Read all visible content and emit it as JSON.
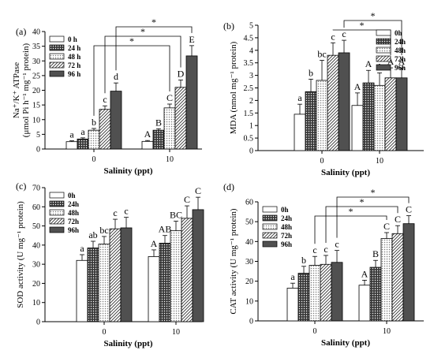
{
  "figure": {
    "panels": [
      {
        "label": "(a)",
        "ylabel_main": "Na⁺/K⁺ ATPase",
        "ylabel_unit": "(μmol Pi h⁻¹ mg⁻¹ protein)",
        "xlabel": "Salinity (ppt)"
      },
      {
        "label": "(b)",
        "ylabel_main": "MDA (nmol mg⁻¹ protein)",
        "ylabel_unit": "",
        "xlabel": "Salinity (ppt)"
      },
      {
        "label": "(c)",
        "ylabel_main": "SOD activity (U mg⁻¹ protein)",
        "ylabel_unit": "",
        "xlabel": "Salinity (ppt)"
      },
      {
        "label": "(d)",
        "ylabel_main": "CAT activity (U mg⁻¹ protein)",
        "ylabel_unit": "",
        "xlabel": "Salinity (ppt)"
      }
    ]
  },
  "chart_data": [
    {
      "type": "bar",
      "title": "",
      "xlabel": "Salinity (ppt)",
      "ylabel": "Na+/K+ ATPase (μmol Pi h-1 mg-1 protein)",
      "ylim": [
        0,
        40
      ],
      "yticks": [
        0,
        5,
        10,
        15,
        20,
        25,
        30,
        35,
        40
      ],
      "categories": [
        "0",
        "10"
      ],
      "legend_position": "upper-left",
      "series": [
        {
          "name": "0 h",
          "values": [
            2.5,
            2.6
          ],
          "errors": [
            0.3,
            0.3
          ],
          "letters": [
            "a",
            "A"
          ],
          "pattern": "white"
        },
        {
          "name": "24 h",
          "values": [
            3.4,
            6.4
          ],
          "errors": [
            0.4,
            0.5
          ],
          "letters": [
            "a",
            "B"
          ],
          "pattern": "dots-dark"
        },
        {
          "name": "48 h",
          "values": [
            6.4,
            14.0
          ],
          "errors": [
            0.6,
            1.3
          ],
          "letters": [
            "b",
            "C"
          ],
          "pattern": "dots-light"
        },
        {
          "name": "72 h",
          "values": [
            13.5,
            21.0
          ],
          "errors": [
            1.2,
            2.5
          ],
          "letters": [
            "c",
            "D"
          ],
          "pattern": "diagonal"
        },
        {
          "name": "96 h",
          "values": [
            19.7,
            31.7
          ],
          "errors": [
            2.8,
            3.5
          ],
          "letters": [
            "d",
            "E"
          ],
          "pattern": "dark"
        }
      ],
      "significance_brackets": [
        {
          "series_index": 2,
          "label": "*"
        },
        {
          "series_index": 3,
          "label": "*"
        },
        {
          "series_index": 4,
          "label": "*"
        }
      ]
    },
    {
      "type": "bar",
      "title": "",
      "xlabel": "Salinity (ppt)",
      "ylabel": "MDA (nmol mg-1 protein)",
      "ylim": [
        0,
        5
      ],
      "yticks": [
        0,
        0.5,
        1,
        1.5,
        2,
        2.5,
        3,
        3.5,
        4,
        4.5,
        5
      ],
      "categories": [
        "0",
        "10"
      ],
      "legend_position": "upper-right",
      "series": [
        {
          "name": "0h",
          "values": [
            1.45,
            1.8
          ],
          "errors": [
            0.4,
            0.5
          ],
          "letters": [
            "a",
            "A"
          ],
          "pattern": "white"
        },
        {
          "name": "24h",
          "values": [
            2.35,
            2.7
          ],
          "errors": [
            0.5,
            0.5
          ],
          "letters": [
            "b",
            "A"
          ],
          "pattern": "dots-dark"
        },
        {
          "name": "48h",
          "values": [
            2.8,
            2.6
          ],
          "errors": [
            0.8,
            0.5
          ],
          "letters": [
            "bc",
            "A"
          ],
          "pattern": "dots-light"
        },
        {
          "name": "72h",
          "values": [
            3.8,
            2.9
          ],
          "errors": [
            0.5,
            0.4
          ],
          "letters": [
            "c",
            "A"
          ],
          "pattern": "diagonal"
        },
        {
          "name": "96h",
          "values": [
            3.9,
            2.9
          ],
          "errors": [
            0.5,
            0.4
          ],
          "letters": [
            "c",
            "A"
          ],
          "pattern": "dark"
        }
      ],
      "significance_brackets": [
        {
          "series_index": 3,
          "label": "*"
        },
        {
          "series_index": 4,
          "label": "*"
        }
      ]
    },
    {
      "type": "bar",
      "title": "",
      "xlabel": "",
      "ylabel": "SOD activity (U mg-1 protein)",
      "ylim": [
        0,
        70
      ],
      "yticks": [
        0,
        10,
        20,
        30,
        40,
        50,
        60,
        70
      ],
      "categories": [
        "0",
        "10"
      ],
      "legend_position": "upper-left",
      "series": [
        {
          "name": "0h",
          "values": [
            32,
            34
          ],
          "errors": [
            3,
            3.5
          ],
          "letters": [
            "a",
            "A"
          ],
          "pattern": "white"
        },
        {
          "name": "24h",
          "values": [
            38.5,
            41
          ],
          "errors": [
            3.5,
            4
          ],
          "letters": [
            "ab",
            "AB"
          ],
          "pattern": "dots-dark"
        },
        {
          "name": "48h",
          "values": [
            40.5,
            47.5
          ],
          "errors": [
            4,
            5
          ],
          "letters": [
            "bc",
            "BC"
          ],
          "pattern": "dots-light"
        },
        {
          "name": "72h",
          "values": [
            48.5,
            54
          ],
          "errors": [
            5,
            6.5
          ],
          "letters": [
            "c",
            "C"
          ],
          "pattern": "diagonal"
        },
        {
          "name": "96h",
          "values": [
            49,
            58.5
          ],
          "errors": [
            5.5,
            6.5
          ],
          "letters": [
            "c",
            "C"
          ],
          "pattern": "dark"
        }
      ],
      "significance_brackets": []
    },
    {
      "type": "bar",
      "title": "",
      "xlabel": "Salinity (ppt)",
      "ylabel": "CAT activity (U mg-1 protein)",
      "ylim": [
        0,
        60
      ],
      "yticks": [
        0,
        10,
        20,
        30,
        40,
        50,
        60
      ],
      "categories": [
        "0",
        "10"
      ],
      "legend_position": "upper-left",
      "series": [
        {
          "name": "0h",
          "values": [
            16.5,
            18
          ],
          "errors": [
            2.5,
            2.5
          ],
          "letters": [
            "a",
            "A"
          ],
          "pattern": "white"
        },
        {
          "name": "24h",
          "values": [
            24,
            27
          ],
          "errors": [
            3.5,
            3.5
          ],
          "letters": [
            "b",
            "B"
          ],
          "pattern": "dots-dark"
        },
        {
          "name": "48h",
          "values": [
            28,
            41.5
          ],
          "errors": [
            4.5,
            3
          ],
          "letters": [
            "c",
            "C"
          ],
          "pattern": "dots-light"
        },
        {
          "name": "72h",
          "values": [
            28.5,
            44
          ],
          "errors": [
            4.5,
            4
          ],
          "letters": [
            "c",
            "C"
          ],
          "pattern": "diagonal"
        },
        {
          "name": "96h",
          "values": [
            29.5,
            49
          ],
          "errors": [
            6,
            4
          ],
          "letters": [
            "c",
            "C"
          ],
          "pattern": "dark"
        }
      ],
      "significance_brackets": [
        {
          "series_index": 2,
          "label": "*"
        },
        {
          "series_index": 3,
          "label": "*"
        },
        {
          "series_index": 4,
          "label": "*"
        }
      ]
    }
  ]
}
